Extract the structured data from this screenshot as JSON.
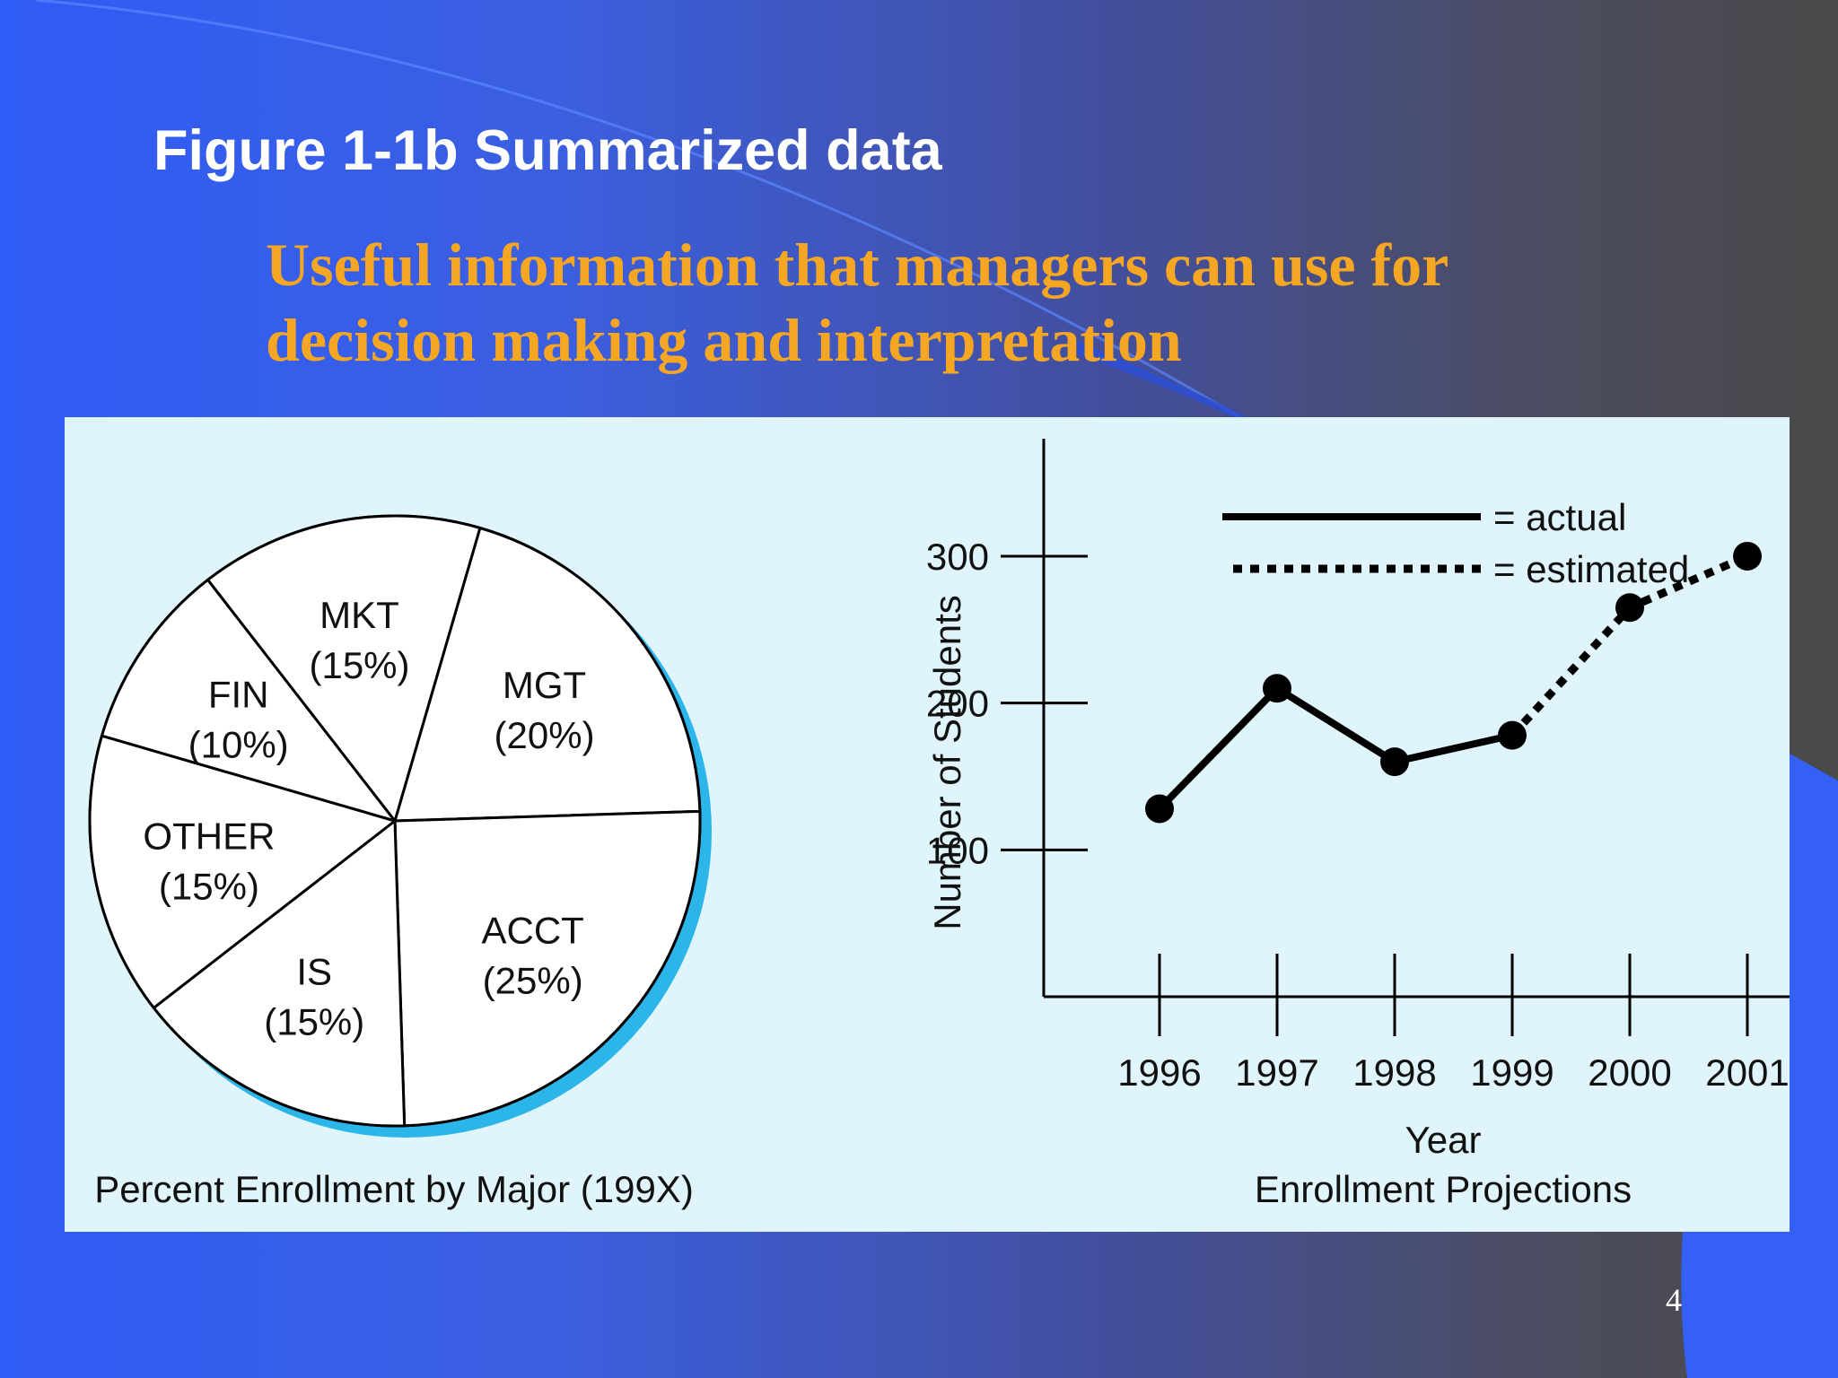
{
  "slide": {
    "title": "Figure 1-1b Summarized data",
    "subtitle_lines": [
      "Useful information that managers can use for",
      "decision making and interpretation"
    ],
    "page_number": "4"
  },
  "colors": {
    "title": "#ffffff",
    "subtitle": "#f5a623",
    "panel_background": "#dff5fb",
    "pie_shadow": "#2cb5e8",
    "ink": "#000000"
  },
  "chart_data": [
    {
      "type": "pie",
      "title": "Percent Enrollment by Major (199X)",
      "slices": [
        {
          "label": "MGT",
          "percent_label": "(20%)",
          "value": 20
        },
        {
          "label": "ACCT",
          "percent_label": "(25%)",
          "value": 25
        },
        {
          "label": "IS",
          "percent_label": "(15%)",
          "value": 15
        },
        {
          "label": "OTHER",
          "percent_label": "(15%)",
          "value": 15
        },
        {
          "label": "FIN",
          "percent_label": "(10%)",
          "value": 10
        },
        {
          "label": "MKT",
          "percent_label": "(15%)",
          "value": 15
        }
      ]
    },
    {
      "type": "line",
      "title": "Enrollment Projections",
      "xlabel": "Year",
      "ylabel": "Number of Students",
      "ylim": [
        0,
        380
      ],
      "yticks": [
        100,
        200,
        300
      ],
      "grid": false,
      "legend_position": "top-right",
      "categories": [
        "1996",
        "1997",
        "1998",
        "1999",
        "2000",
        "2001"
      ],
      "series": [
        {
          "name": "actual",
          "legend_label": "= actual",
          "style": "solid",
          "x": [
            "1996",
            "1997",
            "1998",
            "1999"
          ],
          "values": [
            128,
            210,
            160,
            178
          ]
        },
        {
          "name": "estimated",
          "legend_label": "= estimated",
          "style": "dotted",
          "x": [
            "1999",
            "2000",
            "2001"
          ],
          "values": [
            178,
            265,
            300
          ]
        }
      ]
    }
  ]
}
